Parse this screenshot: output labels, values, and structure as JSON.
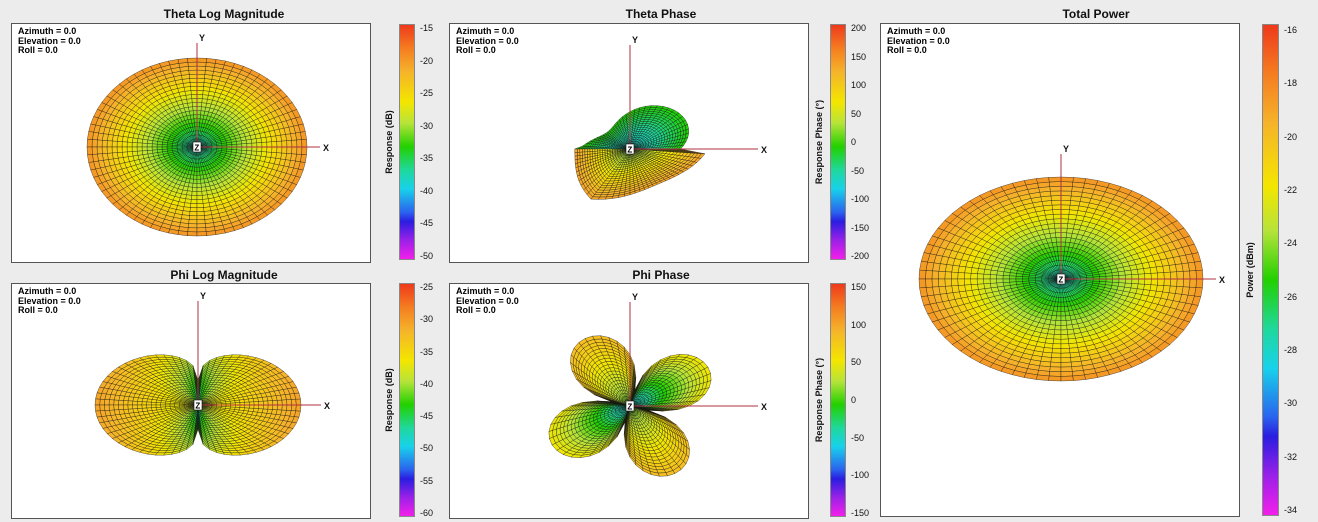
{
  "panels": [
    {
      "id": "theta-log-magnitude",
      "title": "Theta Log Magnitude",
      "info": {
        "azimuth": "Azimuth = 0.0",
        "elevation": "Elevation = 0.0",
        "roll": "Roll = 0.0"
      },
      "axes": {
        "x": "X",
        "y": "Y",
        "z": "Z"
      },
      "colorbar": {
        "label": "Response  (dB)",
        "ticks": [
          "-15",
          "-20",
          "-25",
          "-30",
          "-35",
          "-40",
          "-45",
          "-50"
        ]
      },
      "pattern": "ellipse"
    },
    {
      "id": "theta-phase",
      "title": "Theta Phase",
      "info": {
        "azimuth": "Azimuth = 0.0",
        "elevation": "Elevation = 0.0",
        "roll": "Roll = 0.0"
      },
      "axes": {
        "x": "X",
        "y": "Y",
        "z": "Z"
      },
      "colorbar": {
        "label": "Response Phase  (°)",
        "ticks": [
          "200",
          "150",
          "100",
          "50",
          "0",
          "-50",
          "-100",
          "-150",
          "-200"
        ]
      },
      "pattern": "theta-phase"
    },
    {
      "id": "phi-log-magnitude",
      "title": "Phi Log Magnitude",
      "info": {
        "azimuth": "Azimuth = 0.0",
        "elevation": "Elevation = 0.0",
        "roll": "Roll = 0.0"
      },
      "axes": {
        "x": "X",
        "y": "Y",
        "z": "Z"
      },
      "colorbar": {
        "label": "Response  (dB)",
        "ticks": [
          "-25",
          "-30",
          "-35",
          "-40",
          "-45",
          "-50",
          "-55",
          "-60"
        ]
      },
      "pattern": "phi-mag"
    },
    {
      "id": "phi-phase",
      "title": "Phi Phase",
      "info": {
        "azimuth": "Azimuth = 0.0",
        "elevation": "Elevation = 0.0",
        "roll": "Roll = 0.0"
      },
      "axes": {
        "x": "X",
        "y": "Y",
        "z": "Z"
      },
      "colorbar": {
        "label": "Response Phase  (°)",
        "ticks": [
          "150",
          "100",
          "50",
          "0",
          "-50",
          "-100",
          "-150"
        ]
      },
      "pattern": "phi-phase"
    },
    {
      "id": "total-power",
      "title": "Total Power",
      "info": {
        "azimuth": "Azimuth = 0.0",
        "elevation": "Elevation = 0.0",
        "roll": "Roll = 0.0"
      },
      "axes": {
        "x": "X",
        "y": "Y",
        "z": "Z"
      },
      "colorbar": {
        "label": "Power  (dBm)",
        "ticks": [
          "-16",
          "-18",
          "-20",
          "-22",
          "-24",
          "-26",
          "-28",
          "-30",
          "-32",
          "-34"
        ]
      },
      "pattern": "ellipse"
    }
  ],
  "chart_data": [
    {
      "type": "heatmap",
      "title": "Theta Log Magnitude",
      "colorbar_label": "Response  (dB)",
      "colorbar_range": [
        -50,
        -14
      ],
      "view": {
        "azimuth": 0.0,
        "elevation": 0.0,
        "roll": 0.0
      },
      "axes_labels": [
        "X",
        "Y",
        "Z"
      ]
    },
    {
      "type": "heatmap",
      "title": "Theta Phase",
      "colorbar_label": "Response Phase  (°)",
      "colorbar_range": [
        -210,
        210
      ],
      "view": {
        "azimuth": 0.0,
        "elevation": 0.0,
        "roll": 0.0
      },
      "axes_labels": [
        "X",
        "Y",
        "Z"
      ]
    },
    {
      "type": "heatmap",
      "title": "Phi Log Magnitude",
      "colorbar_label": "Response  (dB)",
      "colorbar_range": [
        -61,
        -24
      ],
      "view": {
        "azimuth": 0.0,
        "elevation": 0.0,
        "roll": 0.0
      },
      "axes_labels": [
        "X",
        "Y",
        "Z"
      ]
    },
    {
      "type": "heatmap",
      "title": "Phi Phase",
      "colorbar_label": "Response Phase  (°)",
      "colorbar_range": [
        -160,
        160
      ],
      "view": {
        "azimuth": 0.0,
        "elevation": 0.0,
        "roll": 0.0
      },
      "axes_labels": [
        "X",
        "Y",
        "Z"
      ]
    },
    {
      "type": "heatmap",
      "title": "Total Power",
      "colorbar_label": "Power  (dBm)",
      "colorbar_range": [
        -34.5,
        -15.5
      ],
      "view": {
        "azimuth": 0.0,
        "elevation": 0.0,
        "roll": 0.0
      },
      "axes_labels": [
        "X",
        "Y",
        "Z"
      ]
    }
  ]
}
